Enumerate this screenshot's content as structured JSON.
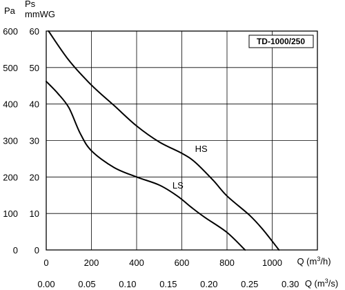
{
  "chart_data": {
    "type": "line",
    "badge": "TD-1000/250",
    "y_axis_left": {
      "unit": "Pa",
      "ticks": [
        0,
        100,
        200,
        300,
        400,
        500,
        600
      ]
    },
    "y_axis_right": {
      "unit_line1": "Ps",
      "unit_line2": "mmWG",
      "ticks": [
        0,
        10,
        20,
        30,
        40,
        50,
        60
      ]
    },
    "x_axis_primary": {
      "label": "Q (m³/h)",
      "ticks": [
        0,
        200,
        400,
        600,
        800,
        1000
      ]
    },
    "x_axis_secondary": {
      "label": "Q (m³/s)",
      "ticks": [
        "0.00",
        "0.05",
        "0.10",
        "0.15",
        "0.20",
        "0.25",
        "0.30"
      ]
    },
    "xlim": [
      0,
      1200
    ],
    "ylim": [
      0,
      600
    ],
    "grid": true,
    "series": [
      {
        "name": "HS",
        "points": [
          [
            10,
            600
          ],
          [
            100,
            520
          ],
          [
            200,
            452
          ],
          [
            300,
            396
          ],
          [
            400,
            340
          ],
          [
            500,
            296
          ],
          [
            600,
            265
          ],
          [
            660,
            240
          ],
          [
            740,
            190
          ],
          [
            800,
            148
          ],
          [
            900,
            95
          ],
          [
            960,
            55
          ],
          [
            1030,
            0
          ]
        ]
      },
      {
        "name": "LS",
        "points": [
          [
            0,
            462
          ],
          [
            50,
            430
          ],
          [
            100,
            390
          ],
          [
            150,
            320
          ],
          [
            200,
            272
          ],
          [
            300,
            226
          ],
          [
            400,
            200
          ],
          [
            500,
            178
          ],
          [
            580,
            148
          ],
          [
            640,
            118
          ],
          [
            700,
            90
          ],
          [
            800,
            48
          ],
          [
            880,
            0
          ]
        ]
      }
    ]
  }
}
